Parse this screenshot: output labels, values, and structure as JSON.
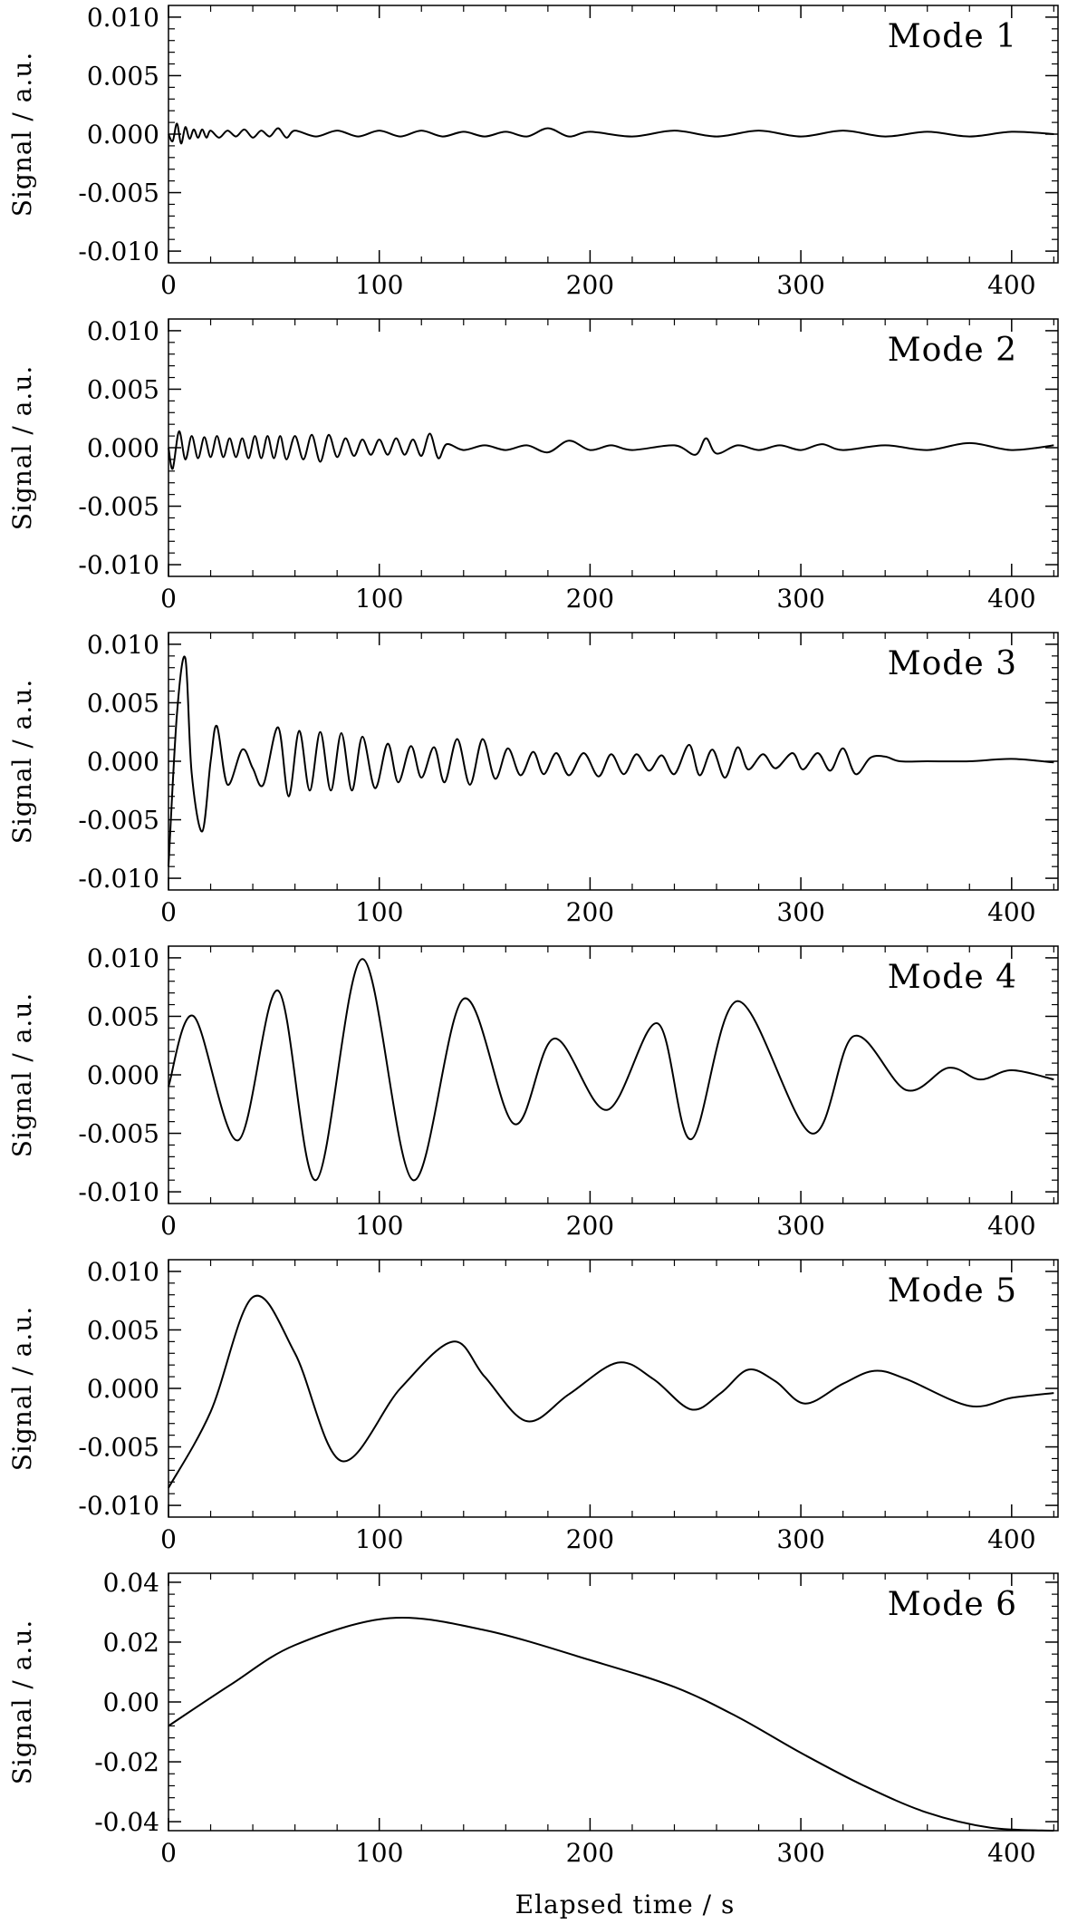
{
  "figure": {
    "xlabel": "Elapsed time / s",
    "ylabel": "Signal / a.u."
  },
  "chart_data": [
    {
      "type": "line",
      "title": "Mode 1",
      "ylabel": "Signal / a.u.",
      "xlim": [
        0,
        422
      ],
      "ylim": [
        -0.011,
        0.011
      ],
      "x_ticks": [
        "0",
        "100",
        "200",
        "300",
        "400"
      ],
      "y_ticks": [
        "0.010",
        "0.005",
        "0.000",
        "-0.005",
        "-0.010"
      ],
      "y_tick_values": [
        0.01,
        0.005,
        0.0,
        -0.005,
        -0.01
      ],
      "series": [
        {
          "x": [
            0,
            2,
            4,
            6,
            8,
            10,
            12,
            14,
            16,
            18,
            20,
            24,
            28,
            32,
            36,
            40,
            44,
            48,
            52,
            56,
            60,
            70,
            80,
            90,
            100,
            110,
            120,
            130,
            140,
            150,
            160,
            170,
            180,
            190,
            200,
            220,
            240,
            260,
            280,
            300,
            320,
            340,
            360,
            380,
            400,
            420
          ],
          "values": [
            0,
            -0.0006,
            0.0009,
            -0.0008,
            0.0006,
            -0.0004,
            0.0004,
            -0.0003,
            0.0004,
            -0.0003,
            0.0003,
            -0.0003,
            0.0003,
            -0.0002,
            0.0004,
            -0.0003,
            0.0003,
            -0.0002,
            0.0005,
            -0.0003,
            0.0003,
            -0.0002,
            0.0003,
            -0.0002,
            0.0003,
            -0.0002,
            0.0003,
            -0.0002,
            0.0002,
            -0.0002,
            0.0002,
            -0.0002,
            0.0005,
            -0.0002,
            0.0002,
            -0.0002,
            0.0003,
            -0.0002,
            0.0003,
            -0.0002,
            0.0003,
            -0.0002,
            0.0002,
            -0.0002,
            0.0002,
            0.0
          ]
        }
      ]
    },
    {
      "type": "line",
      "title": "Mode 2",
      "ylabel": "Signal / a.u.",
      "xlim": [
        0,
        422
      ],
      "ylim": [
        -0.011,
        0.011
      ],
      "x_ticks": [
        "0",
        "100",
        "200",
        "300",
        "400"
      ],
      "y_ticks": [
        "0.010",
        "0.005",
        "0.000",
        "-0.005",
        "-0.010"
      ],
      "y_tick_values": [
        0.01,
        0.005,
        0.0,
        -0.005,
        -0.01
      ],
      "series": [
        {
          "x": [
            0,
            2,
            5,
            8,
            11,
            14,
            17,
            20,
            23,
            26,
            29,
            32,
            35,
            38,
            41,
            44,
            47,
            50,
            53,
            56,
            60,
            64,
            68,
            72,
            76,
            80,
            84,
            88,
            92,
            96,
            100,
            104,
            108,
            112,
            116,
            120,
            124,
            128,
            132,
            140,
            150,
            160,
            170,
            180,
            190,
            200,
            210,
            220,
            240,
            250,
            255,
            260,
            270,
            280,
            290,
            300,
            310,
            320,
            340,
            360,
            380,
            400,
            420
          ],
          "values": [
            0,
            -0.0018,
            0.0014,
            -0.001,
            0.001,
            -0.0009,
            0.0009,
            -0.0008,
            0.001,
            -0.0008,
            0.0008,
            -0.0008,
            0.0008,
            -0.0009,
            0.001,
            -0.0009,
            0.001,
            -0.0009,
            0.001,
            -0.001,
            0.001,
            -0.001,
            0.0011,
            -0.0012,
            0.0011,
            -0.0008,
            0.0008,
            -0.0007,
            0.0007,
            -0.0006,
            0.0007,
            -0.0006,
            0.0008,
            -0.0006,
            0.0007,
            -0.0007,
            0.0012,
            -0.0009,
            0.0003,
            -0.0002,
            0.0002,
            -0.0002,
            0.0002,
            -0.0004,
            0.0006,
            -0.0002,
            0.0002,
            -0.0002,
            0.0002,
            -0.0006,
            0.0008,
            -0.0005,
            0.0002,
            -0.0002,
            0.0002,
            -0.0002,
            0.0003,
            -0.0002,
            0.0002,
            -0.0002,
            0.0004,
            -0.0002,
            0.0002
          ]
        }
      ]
    },
    {
      "type": "line",
      "title": "Mode 3",
      "ylabel": "Signal / a.u.",
      "xlim": [
        0,
        422
      ],
      "ylim": [
        -0.011,
        0.011
      ],
      "x_ticks": [
        "0",
        "100",
        "200",
        "300",
        "400"
      ],
      "y_ticks": [
        "0.010",
        "0.005",
        "0.000",
        "-0.005",
        "-0.010"
      ],
      "y_tick_values": [
        0.01,
        0.005,
        0.0,
        -0.005,
        -0.01
      ],
      "series": [
        {
          "x": [
            0,
            4,
            8,
            11,
            16,
            20,
            23,
            28,
            35,
            40,
            45,
            52,
            57,
            62,
            67,
            72,
            77,
            82,
            87,
            92,
            98,
            104,
            109,
            115,
            120,
            126,
            131,
            137,
            143,
            149,
            155,
            161,
            167,
            173,
            178,
            184,
            190,
            197,
            204,
            210,
            216,
            222,
            228,
            234,
            240,
            247,
            252,
            258,
            264,
            270,
            275,
            282,
            288,
            296,
            301,
            308,
            314,
            320,
            326,
            333,
            340,
            347,
            360,
            380,
            400,
            420
          ],
          "values": [
            -0.009,
            0.004,
            0.0088,
            -0.001,
            -0.006,
            0.0,
            0.003,
            -0.002,
            0.001,
            -0.0006,
            -0.002,
            0.0029,
            -0.003,
            0.0026,
            -0.0025,
            0.0025,
            -0.0025,
            0.0024,
            -0.0025,
            0.0021,
            -0.0023,
            0.0015,
            -0.0018,
            0.0013,
            -0.0014,
            0.0012,
            -0.0018,
            0.0019,
            -0.002,
            0.0019,
            -0.0015,
            0.0011,
            -0.0012,
            0.0008,
            -0.0011,
            0.0007,
            -0.0012,
            0.0007,
            -0.0013,
            0.0006,
            -0.0011,
            0.0006,
            -0.0008,
            0.0005,
            -0.0011,
            0.0014,
            -0.0012,
            0.001,
            -0.0014,
            0.0012,
            -0.0007,
            0.0006,
            -0.0006,
            0.0007,
            -0.0007,
            0.0007,
            -0.0008,
            0.0011,
            -0.0011,
            0.0003,
            0.0004,
            0.0,
            0.0,
            0.0,
            0.0002,
            -0.0001
          ]
        }
      ]
    },
    {
      "type": "line",
      "title": "Mode 4",
      "ylabel": "Signal / a.u.",
      "xlim": [
        0,
        422
      ],
      "ylim": [
        -0.011,
        0.011
      ],
      "x_ticks": [
        "0",
        "100",
        "200",
        "300",
        "400"
      ],
      "y_ticks": [
        "0.010",
        "0.005",
        "0.000",
        "-0.005",
        "-0.010"
      ],
      "y_tick_values": [
        0.01,
        0.005,
        0.0,
        -0.005,
        -0.01
      ],
      "series": [
        {
          "x": [
            0,
            12,
            33,
            52,
            70,
            92,
            116,
            140,
            164,
            183,
            208,
            232,
            248,
            270,
            305,
            325,
            350,
            370,
            385,
            400,
            420
          ],
          "values": [
            -0.001,
            0.005,
            -0.0056,
            0.0072,
            -0.009,
            0.0099,
            -0.009,
            0.0065,
            -0.0042,
            0.0031,
            -0.003,
            0.0044,
            -0.0055,
            0.0063,
            -0.005,
            0.0033,
            -0.0013,
            0.0006,
            -0.0004,
            0.0004,
            -0.0004
          ]
        }
      ]
    },
    {
      "type": "line",
      "title": "Mode 5",
      "ylabel": "Signal / a.u.",
      "xlim": [
        0,
        422
      ],
      "ylim": [
        -0.011,
        0.011
      ],
      "x_ticks": [
        "0",
        "100",
        "200",
        "300",
        "400"
      ],
      "y_ticks": [
        "0.010",
        "0.005",
        "0.000",
        "-0.005",
        "-0.010"
      ],
      "y_tick_values": [
        0.01,
        0.005,
        0.0,
        -0.005,
        -0.01
      ],
      "series": [
        {
          "x": [
            0,
            20,
            40,
            60,
            82,
            110,
            135,
            150,
            170,
            190,
            213,
            230,
            248,
            262,
            275,
            288,
            302,
            320,
            335,
            350,
            380,
            400,
            420
          ],
          "values": [
            -0.0085,
            -0.002,
            0.0078,
            0.003,
            -0.0062,
            0.0,
            0.004,
            0.001,
            -0.0028,
            -0.0005,
            0.0022,
            0.0008,
            -0.0018,
            -0.0004,
            0.0016,
            0.0006,
            -0.0013,
            0.0004,
            0.0015,
            0.0008,
            -0.0015,
            -0.0008,
            -0.0004
          ]
        }
      ]
    },
    {
      "type": "line",
      "title": "Mode 6",
      "ylabel": "Signal / a.u.",
      "xlim": [
        0,
        422
      ],
      "ylim": [
        -0.043,
        0.043
      ],
      "x_ticks": [
        "0",
        "100",
        "200",
        "300",
        "400"
      ],
      "y_ticks": [
        "0.04",
        "0.02",
        "0.00",
        "-0.02",
        "-0.04"
      ],
      "y_tick_values": [
        0.04,
        0.02,
        0.0,
        -0.02,
        -0.04
      ],
      "series": [
        {
          "x": [
            0,
            30,
            60,
            105,
            150,
            200,
            240,
            270,
            300,
            330,
            360,
            390,
            420
          ],
          "values": [
            -0.008,
            0.006,
            0.019,
            0.028,
            0.024,
            0.014,
            0.005,
            -0.005,
            -0.017,
            -0.028,
            -0.037,
            -0.042,
            -0.043
          ]
        }
      ]
    }
  ]
}
